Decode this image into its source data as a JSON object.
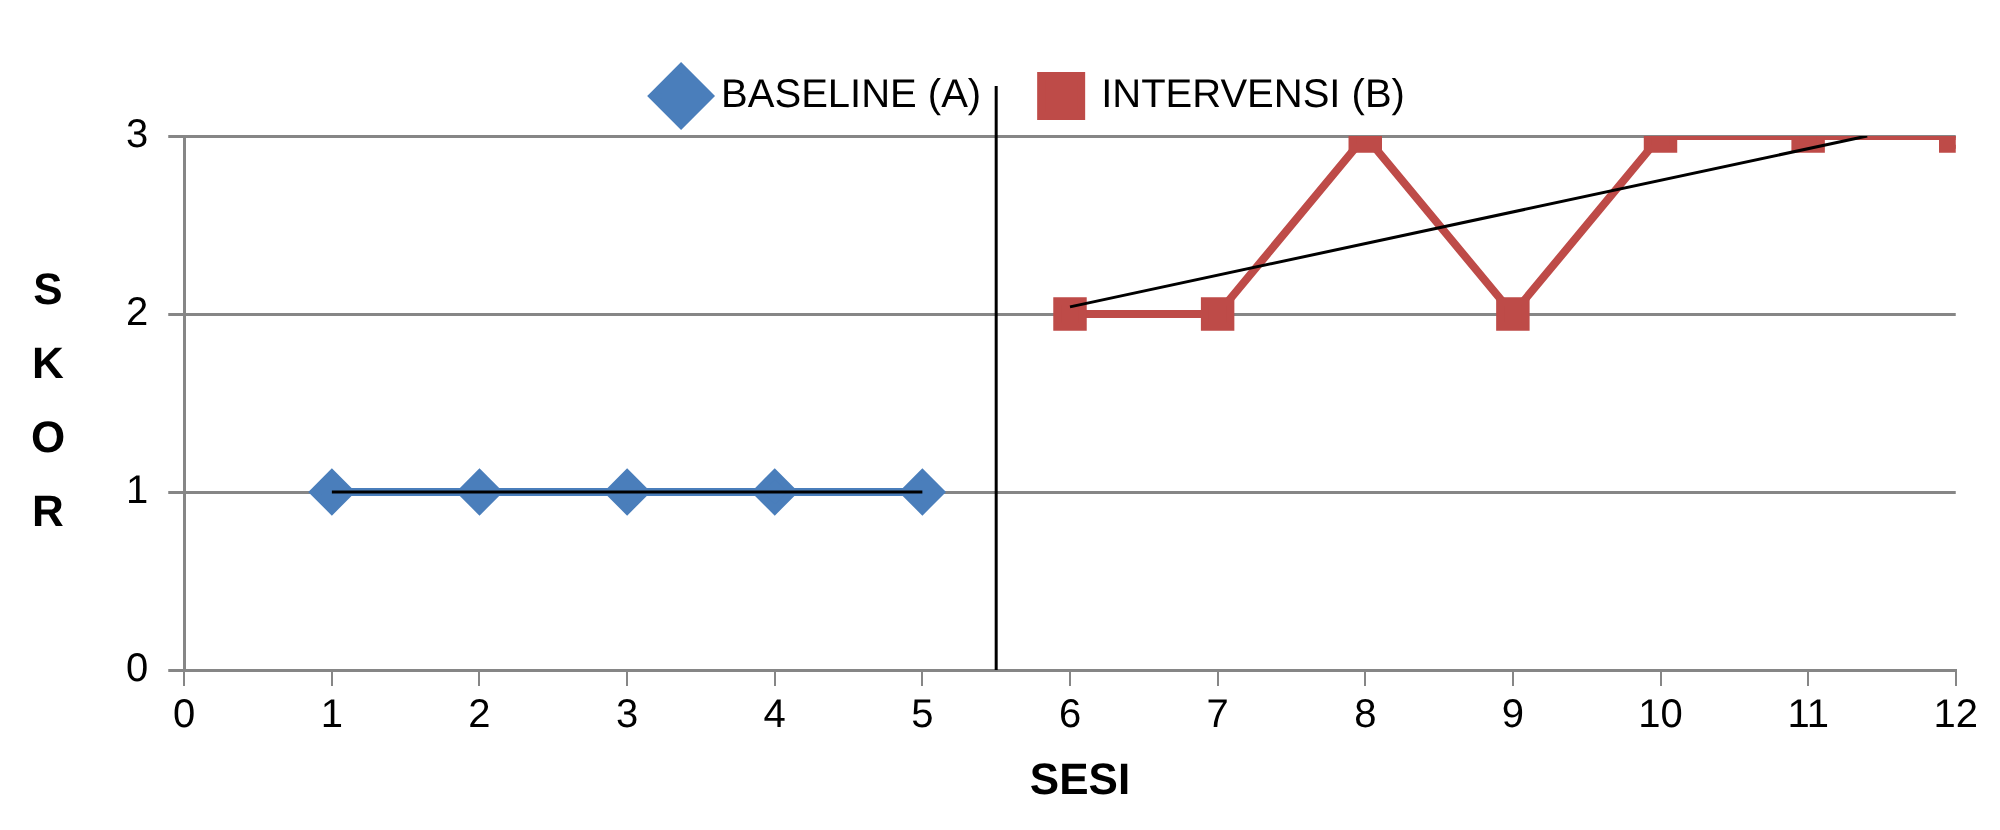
{
  "chart_data": {
    "type": "line",
    "xlabel": "SESI",
    "ylabel": "SKOR",
    "x": [
      1,
      2,
      3,
      4,
      5,
      6,
      7,
      8,
      9,
      10,
      11,
      12
    ],
    "series": [
      {
        "name": "BASELINE (A)",
        "color": "#4a7ebb",
        "marker": "diamond",
        "values": [
          1,
          1,
          1,
          1,
          1,
          null,
          null,
          null,
          null,
          null,
          null,
          null
        ]
      },
      {
        "name": "INTERVENSI (B)",
        "color": "#be4b48",
        "marker": "square",
        "values": [
          null,
          null,
          null,
          null,
          null,
          2,
          2,
          3,
          2,
          3,
          3,
          3
        ]
      },
      {
        "type": "line",
        "color": "#000000",
        "marker": "none",
        "x": [
          1,
          5
        ],
        "values": [
          1,
          1
        ]
      },
      {
        "type": "line",
        "color": "#000000",
        "marker": "none",
        "x": [
          6,
          11.4
        ],
        "values": [
          2.04,
          3
        ]
      }
    ],
    "xlim": [
      0,
      12
    ],
    "ylim": [
      0,
      3
    ],
    "xticks": [
      0,
      1,
      2,
      3,
      4,
      5,
      6,
      7,
      8,
      9,
      10,
      11,
      12
    ],
    "yticks": [
      0,
      1,
      2,
      3
    ],
    "grid": "y",
    "legend": "top",
    "ref_lines": [
      {
        "axis": "x",
        "value": 5.5,
        "color": "#000000"
      }
    ]
  }
}
